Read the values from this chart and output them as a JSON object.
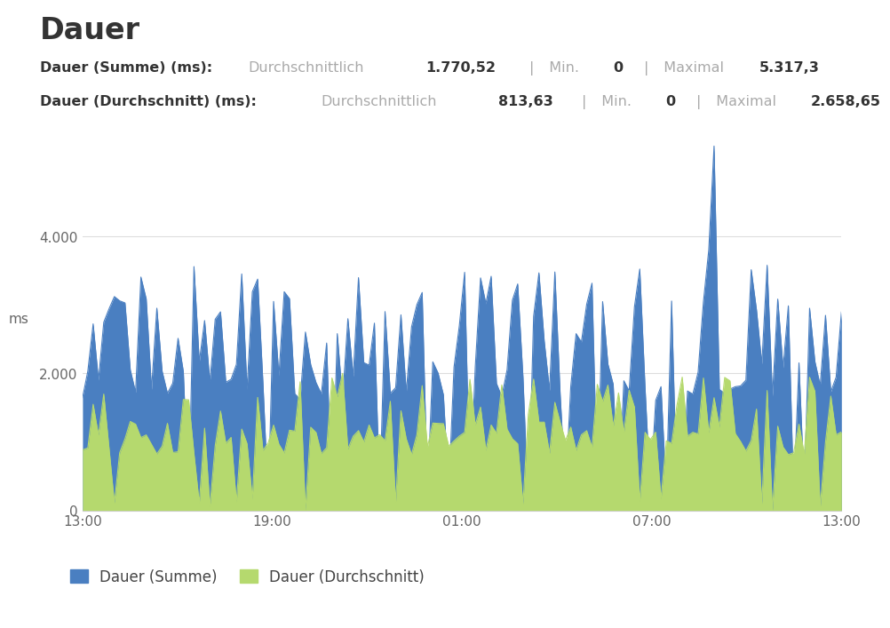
{
  "title": "Dauer",
  "subtitle1_label": "Dauer (Summe) (ms):",
  "subtitle1_gray": "Durchschnittlich",
  "subtitle1_v1": "1.770,52",
  "subtitle1_sep1": "|",
  "subtitle1_min_label": "Min.",
  "subtitle1_v2": "0",
  "subtitle1_sep2": "|",
  "subtitle1_max_label": "Maximal",
  "subtitle1_v3": "5.317,3",
  "subtitle2_label": "Dauer (Durchschnitt) (ms):",
  "subtitle2_gray": "Durchschnittlich",
  "subtitle2_v1": "813,63",
  "subtitle2_sep1": "|",
  "subtitle2_min_label": "Min.",
  "subtitle2_v2": "0",
  "subtitle2_sep2": "|",
  "subtitle2_max_label": "Maximal",
  "subtitle2_v3": "2.658,65",
  "ylabel": "ms",
  "xtick_labels": [
    "13:00",
    "19:00",
    "01:00",
    "07:00",
    "13:00"
  ],
  "ylim": [
    0,
    5600
  ],
  "yticks": [
    0,
    2000,
    4000
  ],
  "legend1": "Dauer (Summe)",
  "legend2": "Dauer (Durchschnitt)",
  "color_summe": "#4a7fc1",
  "color_durchschnitt": "#b5d96e",
  "bg_color": "#ffffff",
  "grid_color": "#dddddd",
  "text_dark": "#333333",
  "text_gray": "#aaaaaa",
  "n_points": 144
}
